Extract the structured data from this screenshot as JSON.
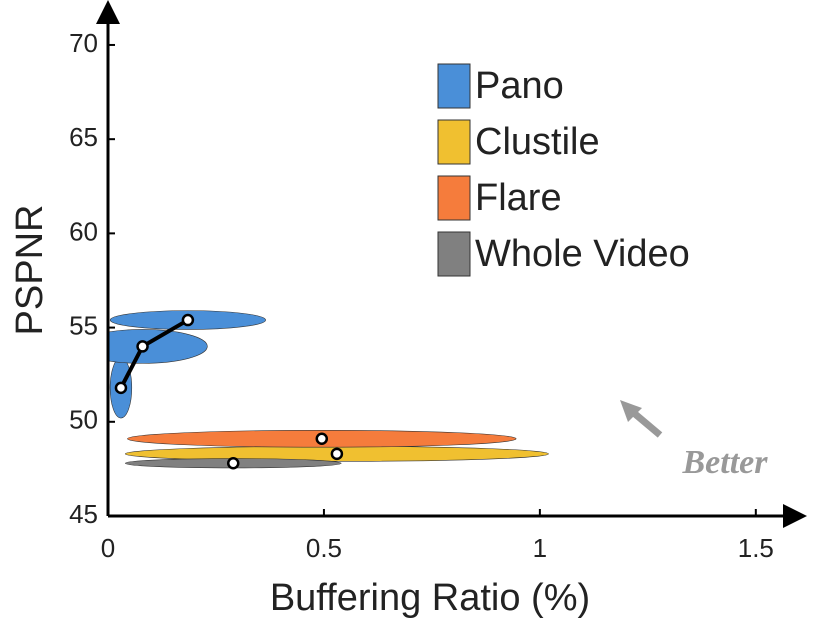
{
  "chart_data": {
    "type": "ellipse-scatter",
    "xlabel": "Buffering Ratio (%)",
    "ylabel": "PSPNR",
    "xlim": [
      0,
      1.6
    ],
    "ylim": [
      45,
      71.5
    ],
    "xticks": [
      0,
      0.5,
      1,
      1.5
    ],
    "yticks": [
      45,
      50,
      55,
      60,
      65,
      70
    ],
    "series": [
      {
        "name": "Pano",
        "color": "#4a8fd8",
        "line": true,
        "x": [
          0.03,
          0.08,
          0.185
        ],
        "y": [
          51.8,
          54.0,
          55.4
        ],
        "x_spread": [
          0.025,
          0.15,
          0.18
        ],
        "y_spread": [
          1.6,
          0.9,
          0.5
        ]
      },
      {
        "name": "Clustile",
        "color": "#f0c030",
        "line": false,
        "x": [
          0.53
        ],
        "y": [
          48.3
        ],
        "x_spread": [
          0.49
        ],
        "y_spread": [
          0.4
        ]
      },
      {
        "name": "Flare",
        "color": "#f57c3c",
        "line": false,
        "x": [
          0.495
        ],
        "y": [
          49.1
        ],
        "x_spread": [
          0.45
        ],
        "y_spread": [
          0.45
        ]
      },
      {
        "name": "Whole Video",
        "color": "#808080",
        "line": false,
        "x": [
          0.29
        ],
        "y": [
          47.8
        ],
        "x_spread": [
          0.25
        ],
        "y_spread": [
          0.25
        ]
      }
    ],
    "annotation": "Better"
  }
}
